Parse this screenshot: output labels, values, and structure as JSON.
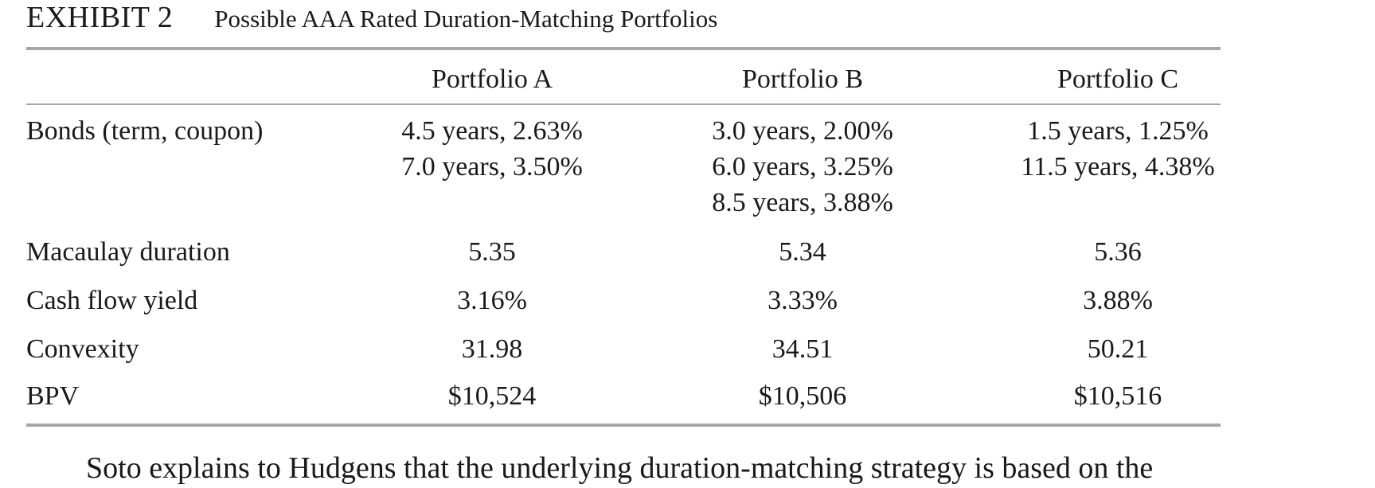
{
  "exhibit": {
    "label": "EXHIBIT 2",
    "title": "Possible AAA Rated Duration-Matching Portfolios"
  },
  "table": {
    "columns": [
      "Portfolio A",
      "Portfolio B",
      "Portfolio C"
    ],
    "rows": {
      "bonds": {
        "label": "Bonds (term, coupon)",
        "a": [
          "4.5 years, 2.63%",
          "7.0 years, 3.50%"
        ],
        "b": [
          "3.0 years, 2.00%",
          "6.0 years, 3.25%",
          "8.5 years, 3.88%"
        ],
        "c": [
          "1.5 years, 1.25%",
          "11.5 years, 4.38%"
        ]
      },
      "macaulay": {
        "label": "Macaulay duration",
        "a": "5.35",
        "b": "5.34",
        "c": "5.36"
      },
      "cash_flow_yield": {
        "label": "Cash flow yield",
        "a": "3.16%",
        "b": "3.33%",
        "c": "3.88%"
      },
      "convexity": {
        "label": "Convexity",
        "a": "31.98",
        "b": "34.51",
        "c": "50.21"
      },
      "bpv": {
        "label": "BPV",
        "a": "$10,524",
        "b": "$10,506",
        "c": "$10,516"
      }
    }
  },
  "footer": {
    "text": "Soto explains to Hudgens that the underlying duration-matching strategy is based on the"
  }
}
